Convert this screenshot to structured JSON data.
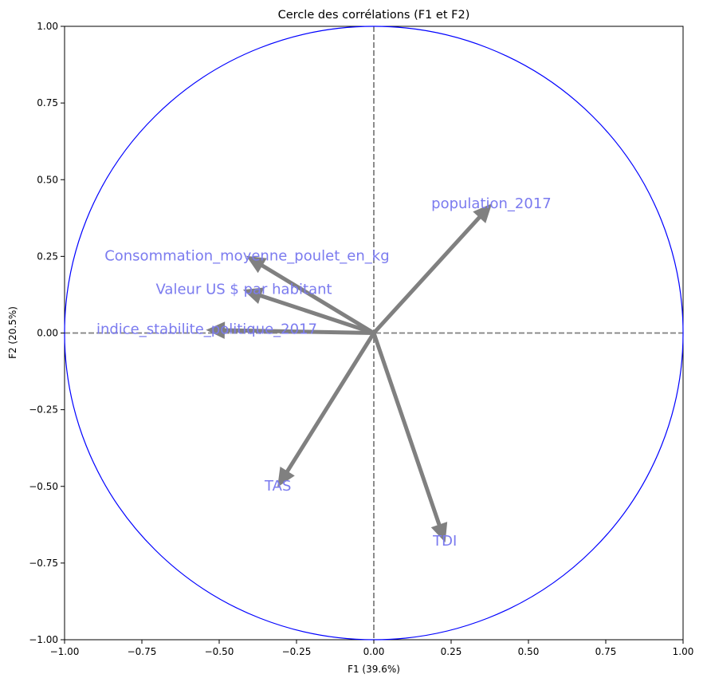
{
  "chart_data": {
    "type": "correlation-circle",
    "title": "Cercle des corrélations (F1 et F2)",
    "xlabel": "F1 (39.6%)",
    "ylabel": "F2 (20.5%)",
    "xlim": [
      -1.0,
      1.0
    ],
    "ylim": [
      -1.0,
      1.0
    ],
    "x_ticks": [
      -1.0,
      -0.75,
      -0.5,
      -0.25,
      0.0,
      0.25,
      0.5,
      0.75,
      1.0
    ],
    "y_ticks": [
      -1.0,
      -0.75,
      -0.5,
      -0.25,
      0.0,
      0.25,
      0.5,
      0.75,
      1.0
    ],
    "x_tick_labels": [
      "−1.00",
      "−0.75",
      "−0.50",
      "−0.25",
      "0.00",
      "0.25",
      "0.50",
      "0.75",
      "1.00"
    ],
    "y_tick_labels": [
      "−1.00",
      "−0.75",
      "−0.50",
      "−0.25",
      "0.00",
      "0.25",
      "0.50",
      "0.75",
      "1.00"
    ],
    "grid": false,
    "circle_color": "#0000ff",
    "arrow_color": "#808080",
    "label_color": "#7b7bef",
    "reference_line_color": "#808080",
    "variables": [
      {
        "name": "population_2017",
        "x": 0.38,
        "y": 0.42
      },
      {
        "name": "Consommation_moyenne_poulet_en_kg",
        "x": -0.41,
        "y": 0.25
      },
      {
        "name": "Valeur US $ par habitant",
        "x": -0.42,
        "y": 0.14
      },
      {
        "name": "indice_stabilite_politique_2017",
        "x": -0.54,
        "y": 0.01
      },
      {
        "name": "TAS",
        "x": -0.31,
        "y": -0.5
      },
      {
        "name": "TDI",
        "x": 0.23,
        "y": -0.68
      }
    ]
  }
}
